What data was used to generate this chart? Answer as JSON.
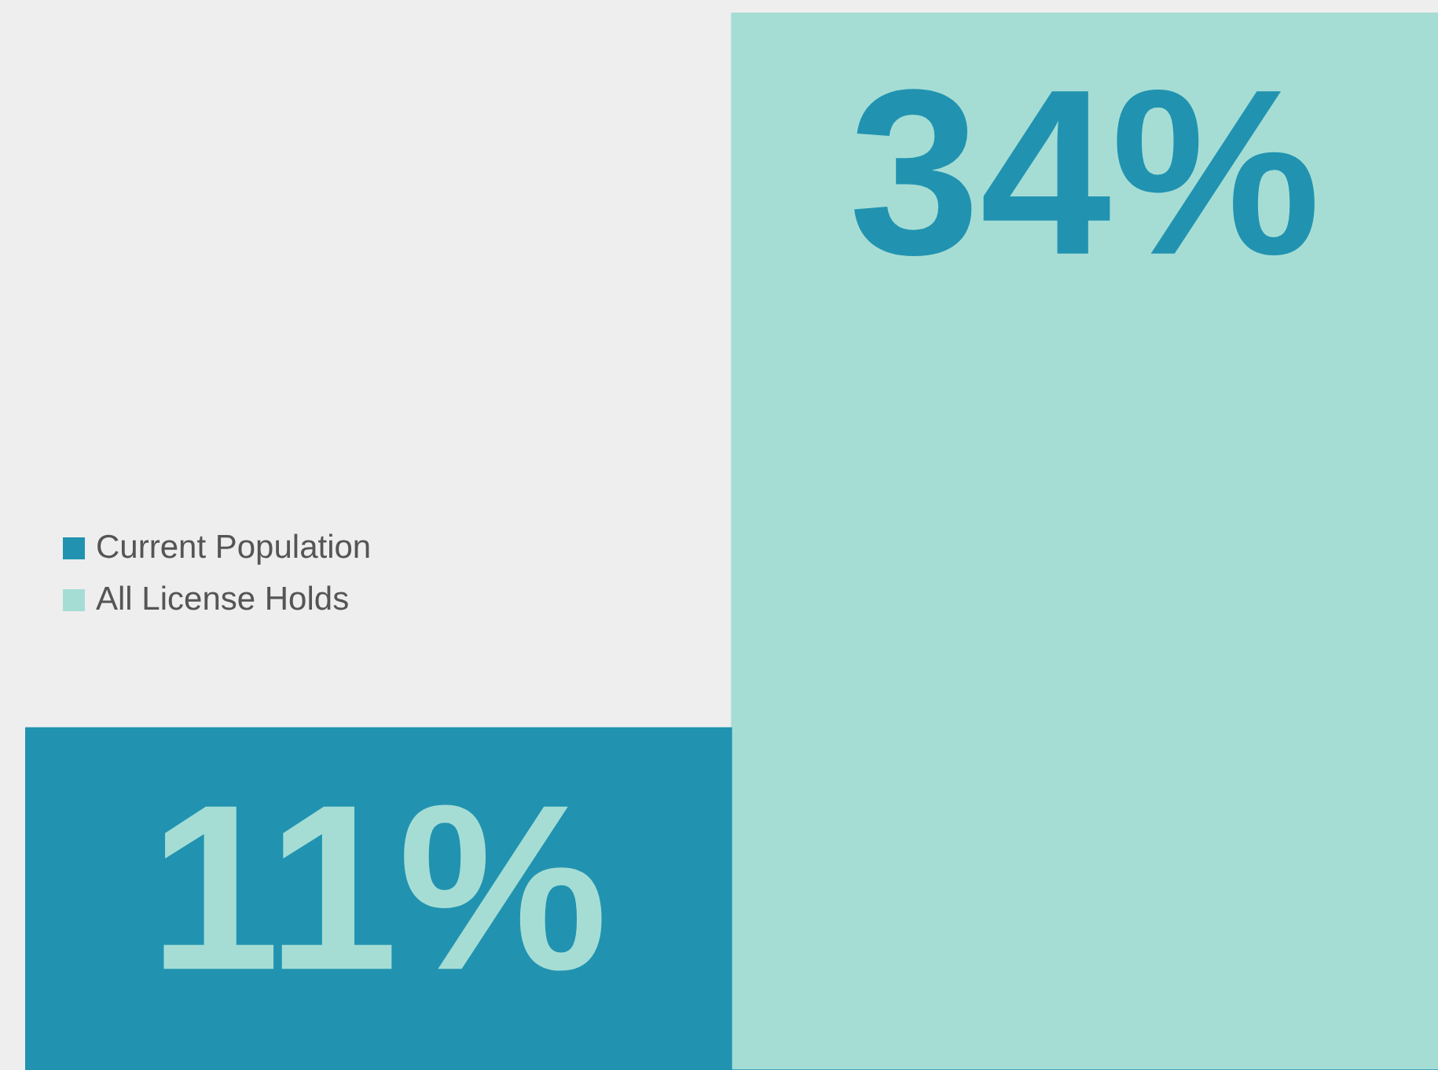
{
  "chart_data": {
    "type": "bar",
    "categories": [
      null,
      null
    ],
    "stacked": true,
    "series": [
      {
        "name": "Current Population",
        "color": "#2193b0",
        "values": [
          11,
          0
        ],
        "value_labels": [
          "11%",
          null
        ]
      },
      {
        "name": "All License Holds",
        "color": "#a5ddd5",
        "values": [
          0,
          34
        ],
        "value_labels": [
          null,
          "34%"
        ]
      }
    ],
    "legend": "left"
  }
}
